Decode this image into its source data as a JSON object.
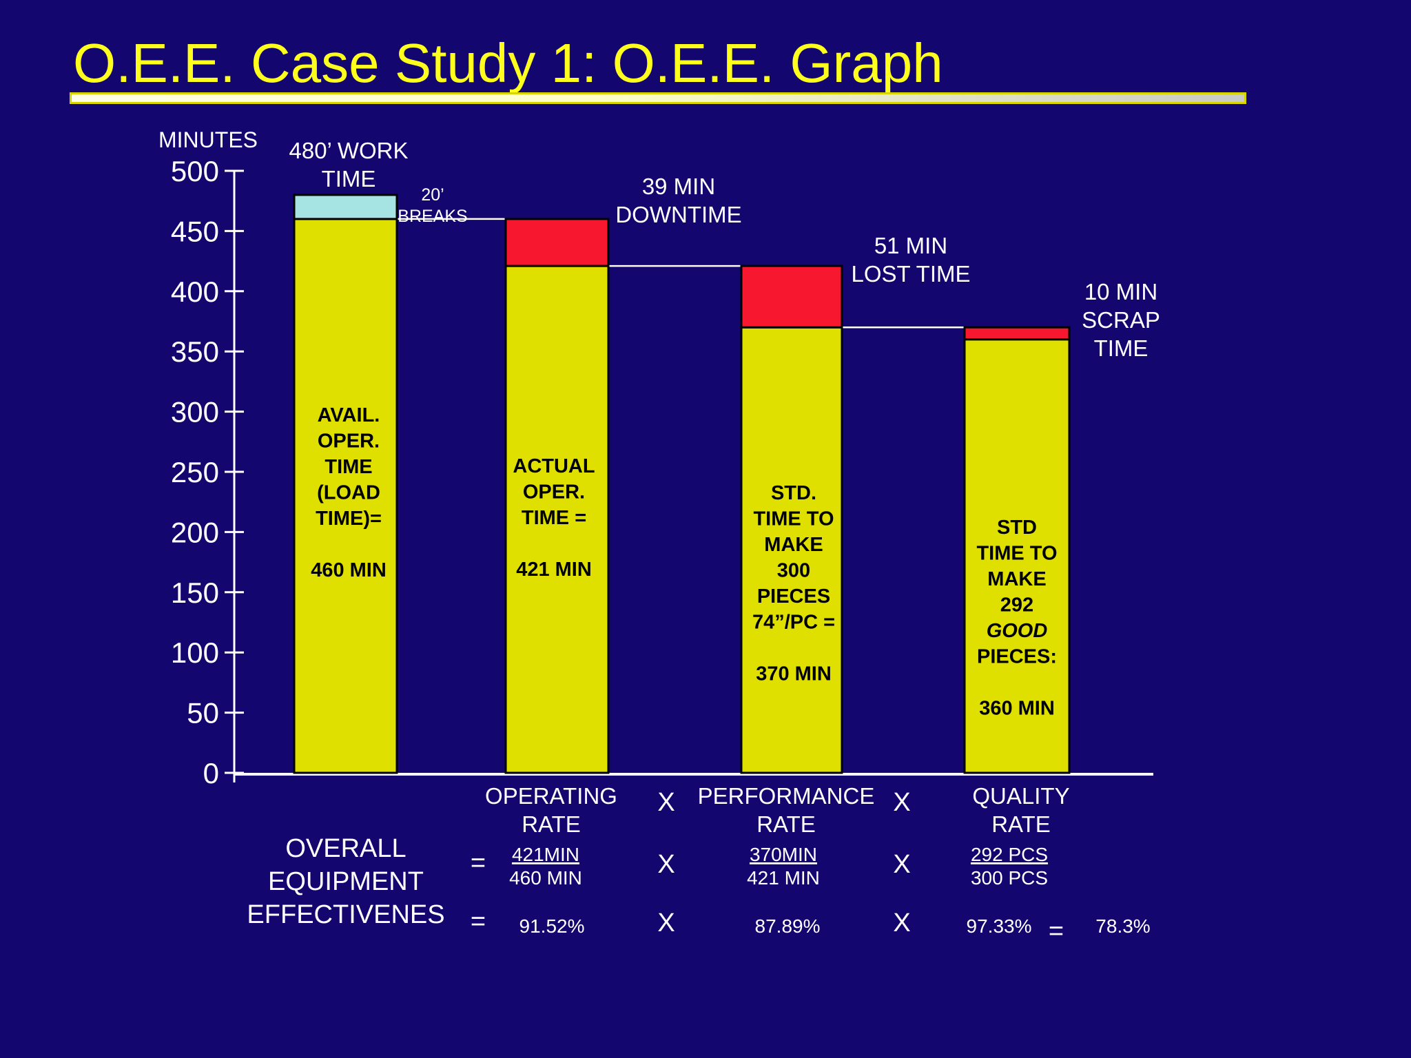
{
  "slide": {
    "title": "O.E.E. Case Study 1:  O.E.E. Graph"
  },
  "colors": {
    "background": "#13066f",
    "title": "#ffff1e",
    "bar_yellow": "#e0e000",
    "breaks": "#a6e4e4",
    "loss_red": "#f7182f",
    "text_white": "#ffffff"
  },
  "chart_data": {
    "type": "bar",
    "stacked": true,
    "ylabel": "MINUTES",
    "ylim": [
      0,
      500
    ],
    "yticks": [
      "0",
      "50",
      "100",
      "150",
      "200",
      "250",
      "300",
      "350",
      "400",
      "450",
      "500"
    ],
    "bars": [
      {
        "base_value": 460,
        "top_value": 480,
        "top_segment": "breaks",
        "inner_label": [
          "AVAIL.",
          "OPER.",
          "TIME",
          "(LOAD",
          "TIME)=",
          "",
          "460 MIN"
        ],
        "annotation": [
          "480’ WORK",
          "TIME"
        ],
        "annotation2": [
          "20’",
          "BREAKS"
        ]
      },
      {
        "base_value": 421,
        "top_value": 460,
        "top_segment": "loss",
        "inner_label": [
          "ACTUAL",
          "OPER.",
          "TIME =",
          "",
          "421 MIN"
        ],
        "annotation": [
          "39 MIN",
          "DOWNTIME"
        ]
      },
      {
        "base_value": 370,
        "top_value": 421,
        "top_segment": "loss",
        "inner_label": [
          "STD.",
          "TIME TO",
          "MAKE",
          "300",
          "PIECES",
          "74”/PC =",
          "",
          "370 MIN"
        ],
        "annotation": [
          "51 MIN",
          "LOST TIME"
        ]
      },
      {
        "base_value": 360,
        "top_value": 370,
        "top_segment": "loss",
        "inner_label": [
          "STD",
          "TIME TO",
          "MAKE",
          "292",
          "GOOD",
          "PIECES:",
          "",
          "360 MIN"
        ],
        "annotation": [
          "10 MIN",
          "SCRAP",
          "TIME"
        ]
      }
    ]
  },
  "formula": {
    "rate_headers": [
      [
        "OPERATING",
        "RATE"
      ],
      [
        "PERFORMANCE",
        "RATE"
      ],
      [
        "QUALITY",
        "RATE"
      ]
    ],
    "oee_label": [
      "OVERALL",
      "EQUIPMENT",
      "EFFECTIVENES"
    ],
    "equals": "=",
    "times": "X",
    "fractions": [
      {
        "numerator": "421MIN",
        "denominator": "460 MIN"
      },
      {
        "numerator": "370MIN",
        "denominator": "421 MIN"
      },
      {
        "numerator": "292 PCS",
        "denominator": "300 PCS"
      }
    ],
    "percentages": [
      "91.52%",
      "87.89%",
      "97.33%"
    ],
    "result": "78.3%"
  }
}
